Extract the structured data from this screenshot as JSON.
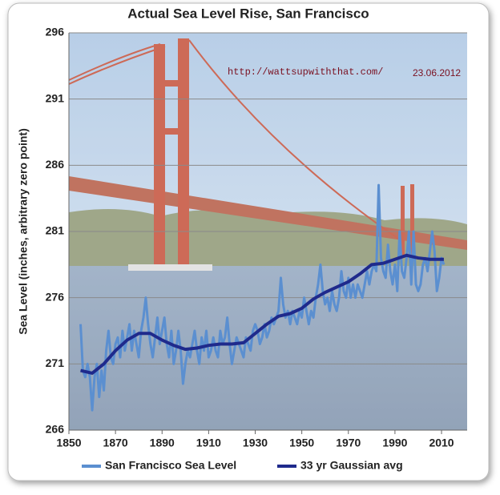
{
  "chart_data": {
    "type": "line",
    "title": "Actual Sea Level Rise, San Francisco",
    "y_label": "Sea Level (inches, arbitrary zero point)",
    "annotations": [
      "http://wattsupwiththat.com/",
      "23.06.2012"
    ],
    "xlim": [
      1850,
      2021
    ],
    "xticks": [
      1850,
      1870,
      1890,
      1910,
      1930,
      1950,
      1970,
      1990,
      2010
    ],
    "ylim": [
      266,
      296
    ],
    "yticks": [
      266,
      271,
      276,
      281,
      286,
      291,
      296
    ],
    "grid": true,
    "legend": "bottom",
    "series": [
      {
        "name": "San Francisco Sea Level",
        "color": "#5b8fd0",
        "x": [
          1855,
          1856,
          1857,
          1858,
          1859,
          1860,
          1861,
          1862,
          1863,
          1864,
          1865,
          1866,
          1867,
          1868,
          1869,
          1870,
          1871,
          1872,
          1873,
          1874,
          1875,
          1876,
          1877,
          1878,
          1879,
          1880,
          1881,
          1882,
          1883,
          1884,
          1885,
          1886,
          1887,
          1888,
          1889,
          1890,
          1891,
          1892,
          1893,
          1894,
          1895,
          1896,
          1897,
          1898,
          1899,
          1900,
          1901,
          1902,
          1903,
          1904,
          1905,
          1906,
          1907,
          1908,
          1909,
          1910,
          1911,
          1912,
          1913,
          1914,
          1915,
          1916,
          1917,
          1918,
          1919,
          1920,
          1921,
          1922,
          1923,
          1924,
          1925,
          1926,
          1927,
          1928,
          1929,
          1930,
          1931,
          1932,
          1933,
          1934,
          1935,
          1936,
          1937,
          1938,
          1939,
          1940,
          1941,
          1942,
          1943,
          1944,
          1945,
          1946,
          1947,
          1948,
          1949,
          1950,
          1951,
          1952,
          1953,
          1954,
          1955,
          1956,
          1957,
          1958,
          1959,
          1960,
          1961,
          1962,
          1963,
          1964,
          1965,
          1966,
          1967,
          1968,
          1969,
          1970,
          1971,
          1972,
          1973,
          1974,
          1975,
          1976,
          1977,
          1978,
          1979,
          1980,
          1981,
          1982,
          1983,
          1984,
          1985,
          1986,
          1987,
          1988,
          1989,
          1990,
          1991,
          1992,
          1993,
          1994,
          1995,
          1996,
          1997,
          1998,
          1999,
          2000,
          2001,
          2002,
          2003,
          2004,
          2005,
          2006,
          2007,
          2008,
          2009,
          2010,
          2011
        ],
        "values": [
          274,
          270.5,
          270,
          271,
          270,
          267.5,
          270,
          271,
          268.5,
          270.5,
          269,
          272,
          273.5,
          271.5,
          271,
          272.5,
          273,
          271.5,
          273.5,
          272,
          273,
          274,
          272,
          273.5,
          272.5,
          271.5,
          273.5,
          274.5,
          276,
          274,
          272.5,
          271.5,
          273,
          274.5,
          272.5,
          273.5,
          274.5,
          272.5,
          271.5,
          273.5,
          271,
          272,
          273.5,
          272,
          269.5,
          271,
          272,
          271.5,
          272.5,
          273.5,
          272,
          271,
          273,
          272,
          273.5,
          271.5,
          272,
          273,
          272,
          271.5,
          273.5,
          272.5,
          273,
          274.5,
          272.5,
          271,
          272,
          273,
          272.5,
          272,
          271.5,
          273,
          272.5,
          272,
          273.5,
          274,
          273.5,
          272.5,
          273,
          274,
          273,
          273.5,
          274.5,
          274,
          274.5,
          275,
          277.5,
          275.5,
          274.5,
          275,
          274,
          275,
          274.5,
          274,
          275,
          274.5,
          276,
          275,
          274,
          275,
          274.5,
          276,
          277,
          278.5,
          276.5,
          275.5,
          276,
          275,
          276.5,
          275.5,
          275,
          276,
          278,
          276.5,
          276,
          277.5,
          276,
          277,
          276,
          277,
          276.5,
          276,
          277,
          278,
          277,
          278,
          278.5,
          278,
          284.5,
          279,
          278,
          277.5,
          280,
          278,
          277,
          278.5,
          276.5,
          281,
          278,
          277.5,
          279,
          281,
          277,
          281,
          277,
          276.5,
          277,
          278.5,
          279,
          278,
          279.5,
          281,
          279.5,
          276.5,
          277.5,
          279,
          278.5
        ]
      },
      {
        "name": "33 yr Gaussian avg",
        "color": "#1f2a8c",
        "x": [
          1855,
          1860,
          1865,
          1870,
          1875,
          1880,
          1885,
          1890,
          1895,
          1900,
          1905,
          1910,
          1915,
          1920,
          1925,
          1930,
          1935,
          1940,
          1945,
          1950,
          1955,
          1960,
          1965,
          1970,
          1975,
          1980,
          1985,
          1990,
          1995,
          2000,
          2005,
          2011
        ],
        "values": [
          270.5,
          270.3,
          271,
          272,
          272.8,
          273.3,
          273.3,
          272.8,
          272.4,
          272.1,
          272.2,
          272.4,
          272.5,
          272.5,
          272.6,
          273.3,
          274,
          274.6,
          274.8,
          275.2,
          275.9,
          276.4,
          276.8,
          277.2,
          277.8,
          278.5,
          278.6,
          278.9,
          279.2,
          279,
          278.9,
          278.9
        ]
      }
    ]
  }
}
